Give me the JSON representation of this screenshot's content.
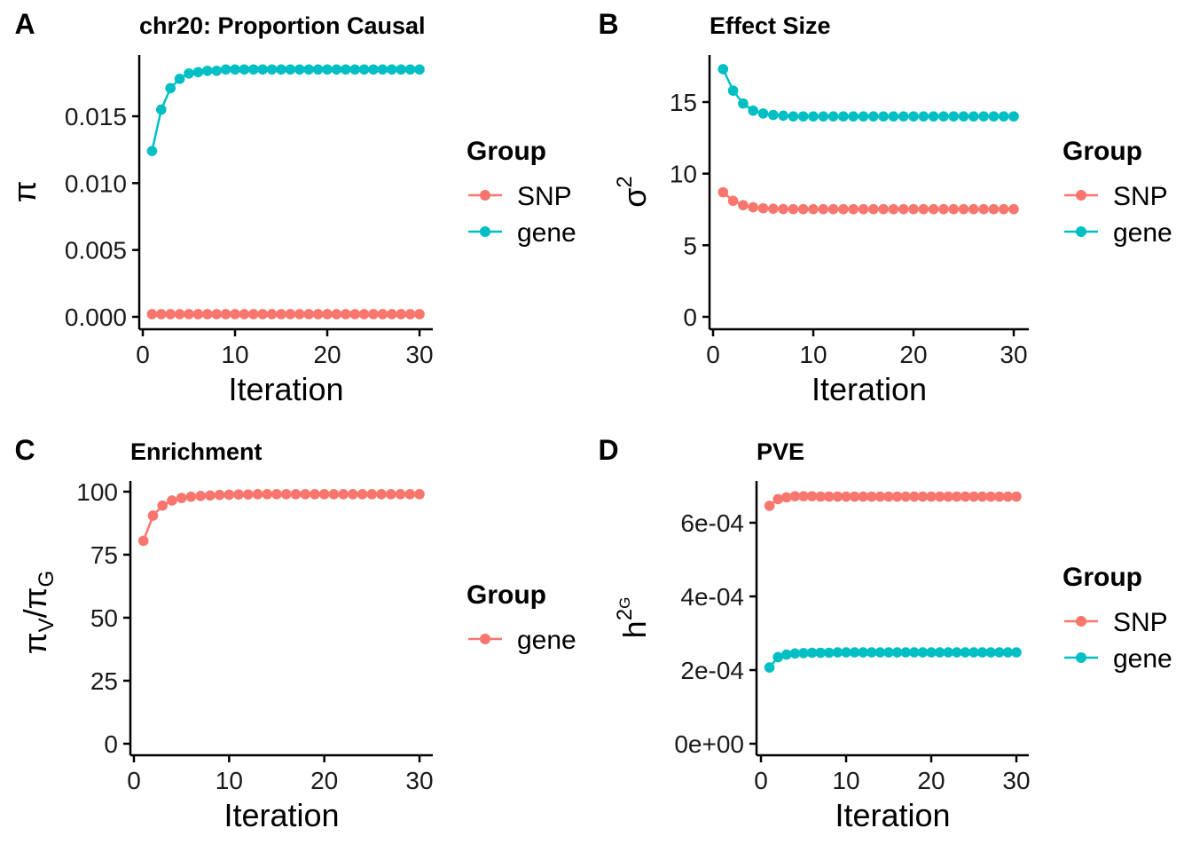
{
  "colors": {
    "SNP": "#F8766D",
    "gene": "#00BFC4"
  },
  "chart_data": [
    {
      "panel": "A",
      "type": "line",
      "title": "chr20: Proportion Causal",
      "xlabel": "Iteration",
      "ylabel": "π",
      "xlim": [
        0,
        30
      ],
      "xticks": [
        "0",
        "10",
        "20",
        "30"
      ],
      "ylim": [
        0,
        0.0185
      ],
      "yticks": [
        "0.000",
        "0.005",
        "0.010",
        "0.015"
      ],
      "legend": {
        "title": "Group",
        "position": "right",
        "items": [
          "SNP",
          "gene"
        ]
      },
      "x": [
        1,
        2,
        3,
        4,
        5,
        6,
        7,
        8,
        9,
        10,
        11,
        12,
        13,
        14,
        15,
        16,
        17,
        18,
        19,
        20,
        21,
        22,
        23,
        24,
        25,
        26,
        27,
        28,
        29,
        30
      ],
      "series": [
        {
          "name": "SNP",
          "color": "#F8766D",
          "values": [
            0.0002,
            0.0002,
            0.0002,
            0.0002,
            0.0002,
            0.0002,
            0.0002,
            0.0002,
            0.0002,
            0.0002,
            0.0002,
            0.0002,
            0.0002,
            0.0002,
            0.0002,
            0.0002,
            0.0002,
            0.0002,
            0.0002,
            0.0002,
            0.0002,
            0.0002,
            0.0002,
            0.0002,
            0.0002,
            0.0002,
            0.0002,
            0.0002,
            0.0002,
            0.0002
          ]
        },
        {
          "name": "gene",
          "color": "#00BFC4",
          "values": [
            0.0124,
            0.0155,
            0.0171,
            0.0178,
            0.0182,
            0.0183,
            0.0184,
            0.0184,
            0.0185,
            0.0185,
            0.0185,
            0.0185,
            0.0185,
            0.0185,
            0.0185,
            0.0185,
            0.0185,
            0.0185,
            0.0185,
            0.0185,
            0.0185,
            0.0185,
            0.0185,
            0.0185,
            0.0185,
            0.0185,
            0.0185,
            0.0185,
            0.0185,
            0.0185
          ]
        }
      ]
    },
    {
      "panel": "B",
      "type": "line",
      "title": "Effect Size",
      "xlabel": "Iteration",
      "ylabel": "σ",
      "ylabel_sup": "2",
      "xlim": [
        0,
        30
      ],
      "xticks": [
        "0",
        "10",
        "20",
        "30"
      ],
      "ylim": [
        0,
        17.3
      ],
      "yticks": [
        "0",
        "5",
        "10",
        "15"
      ],
      "legend": {
        "title": "Group",
        "position": "right",
        "items": [
          "SNP",
          "gene"
        ]
      },
      "x": [
        1,
        2,
        3,
        4,
        5,
        6,
        7,
        8,
        9,
        10,
        11,
        12,
        13,
        14,
        15,
        16,
        17,
        18,
        19,
        20,
        21,
        22,
        23,
        24,
        25,
        26,
        27,
        28,
        29,
        30
      ],
      "series": [
        {
          "name": "SNP",
          "color": "#F8766D",
          "values": [
            8.7,
            8.1,
            7.8,
            7.65,
            7.58,
            7.55,
            7.53,
            7.52,
            7.52,
            7.52,
            7.52,
            7.52,
            7.52,
            7.52,
            7.52,
            7.52,
            7.52,
            7.52,
            7.52,
            7.52,
            7.52,
            7.52,
            7.52,
            7.52,
            7.52,
            7.52,
            7.52,
            7.52,
            7.52,
            7.52
          ]
        },
        {
          "name": "gene",
          "color": "#00BFC4",
          "values": [
            17.3,
            15.8,
            14.9,
            14.4,
            14.2,
            14.1,
            14.05,
            14.0,
            14.0,
            14.0,
            14.0,
            14.0,
            14.0,
            14.0,
            14.0,
            14.0,
            14.0,
            14.0,
            14.0,
            14.0,
            14.0,
            14.0,
            14.0,
            14.0,
            14.0,
            14.0,
            14.0,
            14.0,
            14.0,
            14.0
          ]
        }
      ]
    },
    {
      "panel": "C",
      "type": "line",
      "title": "Enrichment",
      "xlabel": "Iteration",
      "ylabel_parts": {
        "num": "π",
        "num_sub": "V",
        "slash": "/",
        "den": "π",
        "den_sub": "G"
      },
      "xlim": [
        0,
        30
      ],
      "xticks": [
        "0",
        "10",
        "20",
        "30"
      ],
      "ylim": [
        0,
        100
      ],
      "yticks": [
        "0",
        "25",
        "50",
        "75",
        "100"
      ],
      "legend": {
        "title": "Group",
        "position": "right",
        "items": [
          "gene"
        ]
      },
      "x": [
        1,
        2,
        3,
        4,
        5,
        6,
        7,
        8,
        9,
        10,
        11,
        12,
        13,
        14,
        15,
        16,
        17,
        18,
        19,
        20,
        21,
        22,
        23,
        24,
        25,
        26,
        27,
        28,
        29,
        30
      ],
      "series": [
        {
          "name": "gene",
          "color": "#F8766D",
          "values": [
            80.5,
            90.5,
            94.5,
            96.5,
            97.5,
            98.0,
            98.3,
            98.5,
            98.7,
            98.8,
            98.9,
            98.9,
            99.0,
            99.0,
            99.0,
            99.0,
            99.0,
            99.0,
            99.0,
            99.0,
            99.0,
            99.0,
            99.0,
            99.0,
            99.0,
            99.0,
            99.0,
            99.0,
            99.0,
            99.0
          ]
        }
      ]
    },
    {
      "panel": "D",
      "type": "line",
      "title": "PVE",
      "xlabel": "Iteration",
      "ylabel": "h",
      "ylabel_sup": "2",
      "ylabel_supsub": "G",
      "xlim": [
        0,
        30
      ],
      "xticks": [
        "0",
        "10",
        "20",
        "30"
      ],
      "ylim": [
        0,
        0.000675
      ],
      "yticks": [
        "0e+00",
        "2e-04",
        "4e-04",
        "6e-04"
      ],
      "legend": {
        "title": "Group",
        "position": "right",
        "items": [
          "SNP",
          "gene"
        ]
      },
      "x": [
        1,
        2,
        3,
        4,
        5,
        6,
        7,
        8,
        9,
        10,
        11,
        12,
        13,
        14,
        15,
        16,
        17,
        18,
        19,
        20,
        21,
        22,
        23,
        24,
        25,
        26,
        27,
        28,
        29,
        30
      ],
      "series": [
        {
          "name": "SNP",
          "color": "#F8766D",
          "values": [
            0.000646,
            0.000664,
            0.000669,
            0.000672,
            0.000672,
            0.000672,
            0.000671,
            0.000671,
            0.000671,
            0.000671,
            0.000671,
            0.000671,
            0.000671,
            0.000671,
            0.000671,
            0.000671,
            0.000671,
            0.000671,
            0.000671,
            0.000671,
            0.000671,
            0.000671,
            0.000671,
            0.000671,
            0.000671,
            0.000671,
            0.000671,
            0.000671,
            0.000671,
            0.000671
          ]
        },
        {
          "name": "gene",
          "color": "#00BFC4",
          "values": [
            0.000207,
            0.000235,
            0.000242,
            0.000245,
            0.000246,
            0.000247,
            0.000247,
            0.000247,
            0.000248,
            0.000248,
            0.000248,
            0.000248,
            0.000248,
            0.000248,
            0.000248,
            0.000248,
            0.000248,
            0.000248,
            0.000248,
            0.000248,
            0.000248,
            0.000248,
            0.000248,
            0.000248,
            0.000248,
            0.000248,
            0.000248,
            0.000248,
            0.000248,
            0.000248
          ]
        }
      ]
    }
  ]
}
